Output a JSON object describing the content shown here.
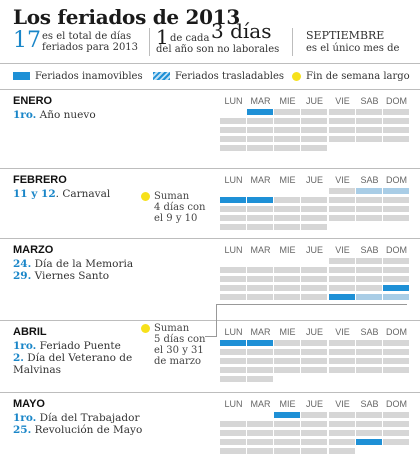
{
  "title": "Los feriados  de 2013",
  "stats": {
    "s1_num": "17",
    "s1_text_1": "es el total de días",
    "s1_text_2": "feriados para 2013",
    "s2_prefix": "1",
    "s2_mid": "de cada",
    "s2_big": "3 días",
    "s2_text": "del año son no laborales",
    "s3_title": "SEPTIEMBRE",
    "s3_text": "es el único mes de"
  },
  "legend": {
    "fixed": "Feriados inamovibles",
    "movable": "Feriados trasladables",
    "long_weekend": "Fin de semana largo"
  },
  "colors": {
    "fixed": "#1e90d6",
    "movable": "#a9cde6",
    "empty": "#d6d6d6",
    "long_weekend": "#f7e11b"
  },
  "days": [
    "LUN",
    "MAR",
    "MIE",
    "JUE",
    "VIE",
    "SAB",
    "DOM"
  ],
  "months": [
    {
      "name": "ENERO",
      "holidays": [
        {
          "date": "1ro.",
          "name": "Año nuevo"
        }
      ],
      "first_col": 1,
      "weeks": 5,
      "marks": [
        {
          "week": 0,
          "col": 1,
          "kind": "fixed"
        }
      ]
    },
    {
      "name": "FEBRERO",
      "holidays": [
        {
          "date": "11 y 12",
          "name": ". Carnaval"
        }
      ],
      "first_col": 4,
      "weeks": 5,
      "marks": [
        {
          "week": 0,
          "col": 5,
          "kind": "movable"
        },
        {
          "week": 0,
          "col": 6,
          "kind": "movable"
        },
        {
          "week": 1,
          "col": 0,
          "kind": "fixed"
        },
        {
          "week": 1,
          "col": 1,
          "kind": "fixed"
        }
      ],
      "note": {
        "lines": [
          "Suman",
          "4 días con",
          "el 9 y 10"
        ]
      }
    },
    {
      "name": "MARZO",
      "holidays": [
        {
          "date": "24.",
          "name": " Día de la Memoria"
        },
        {
          "date": "29.",
          "name": " Viernes Santo"
        }
      ],
      "first_col": 4,
      "weeks": 5,
      "marks": [
        {
          "week": 3,
          "col": 6,
          "kind": "fixed"
        },
        {
          "week": 4,
          "col": 4,
          "kind": "fixed"
        },
        {
          "week": 4,
          "col": 5,
          "kind": "movable"
        },
        {
          "week": 4,
          "col": 6,
          "kind": "movable"
        }
      ]
    },
    {
      "name": "ABRIL",
      "holidays": [
        {
          "date": "1ro.",
          "name": " Feriado Puente"
        },
        {
          "date": "2.",
          "name": " Día del Veterano de"
        },
        {
          "date": "",
          "name": "Malvinas"
        }
      ],
      "first_col": 0,
      "weeks": 5,
      "marks": [
        {
          "week": 0,
          "col": 0,
          "kind": "fixed"
        },
        {
          "week": 0,
          "col": 1,
          "kind": "fixed"
        }
      ],
      "note": {
        "lines": [
          "Suman",
          "5 días con",
          "el 30 y 31",
          "de marzo"
        ]
      }
    },
    {
      "name": "MAYO",
      "holidays": [
        {
          "date": "1ro.",
          "name": " Día del Trabajador"
        },
        {
          "date": "25.",
          "name": " Revolución de Mayo"
        }
      ],
      "first_col": 2,
      "weeks": 5,
      "marks": [
        {
          "week": 0,
          "col": 2,
          "kind": "fixed"
        },
        {
          "week": 3,
          "col": 5,
          "kind": "fixed"
        }
      ]
    }
  ]
}
